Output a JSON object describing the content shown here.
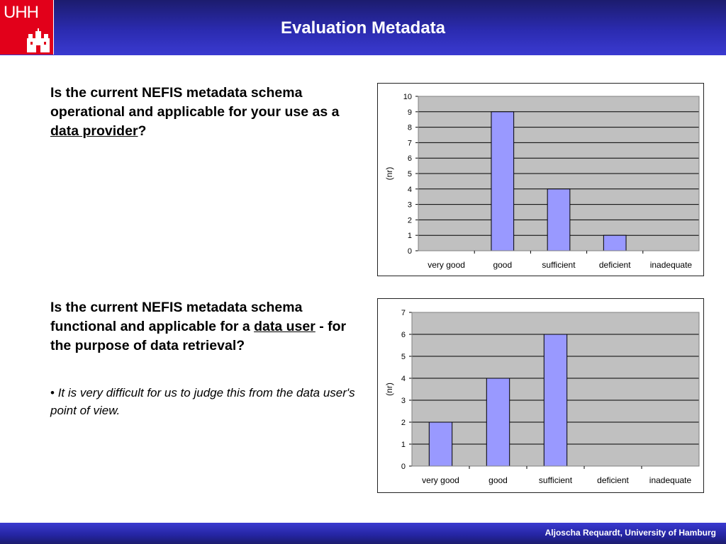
{
  "header": {
    "logo_text": "UHH",
    "title": "Evaluation Metadata"
  },
  "question1": {
    "text_before": "Is the current NEFIS metadata schema operational and applicable for your use as a ",
    "underlined": "data provider",
    "text_after": "?"
  },
  "question2": {
    "text_before": "Is the current NEFIS metadata schema functional and applicable for a ",
    "underlined": "data user",
    "text_after": " - for the purpose of data retrieval?"
  },
  "note": {
    "bullet": "•",
    "text": "It is very difficult for us to judge this from the data user's point of view."
  },
  "footer": {
    "text": "Aljoscha Requardt, University of Hamburg"
  },
  "colors": {
    "bar_fill": "#9999ff",
    "plot_bg": "#c0c0c0",
    "logo_red": "#e2001a"
  },
  "chart_data": [
    {
      "type": "bar",
      "categories": [
        "very good",
        "good",
        "sufficient",
        "deficient",
        "inadequate"
      ],
      "values": [
        0,
        9,
        4,
        1,
        0
      ],
      "title": "",
      "xlabel": "",
      "ylabel": "(nr)",
      "ylim": [
        0,
        10
      ],
      "yticks": [
        0,
        1,
        2,
        3,
        4,
        5,
        6,
        7,
        8,
        9,
        10
      ],
      "grid": true,
      "legend": "none"
    },
    {
      "type": "bar",
      "categories": [
        "very good",
        "good",
        "sufficient",
        "deficient",
        "inadequate"
      ],
      "values": [
        2,
        4,
        6,
        0,
        0
      ],
      "title": "",
      "xlabel": "",
      "ylabel": "(nr)",
      "ylim": [
        0,
        7
      ],
      "yticks": [
        0,
        1,
        2,
        3,
        4,
        5,
        6,
        7
      ],
      "grid": true,
      "legend": "none"
    }
  ]
}
